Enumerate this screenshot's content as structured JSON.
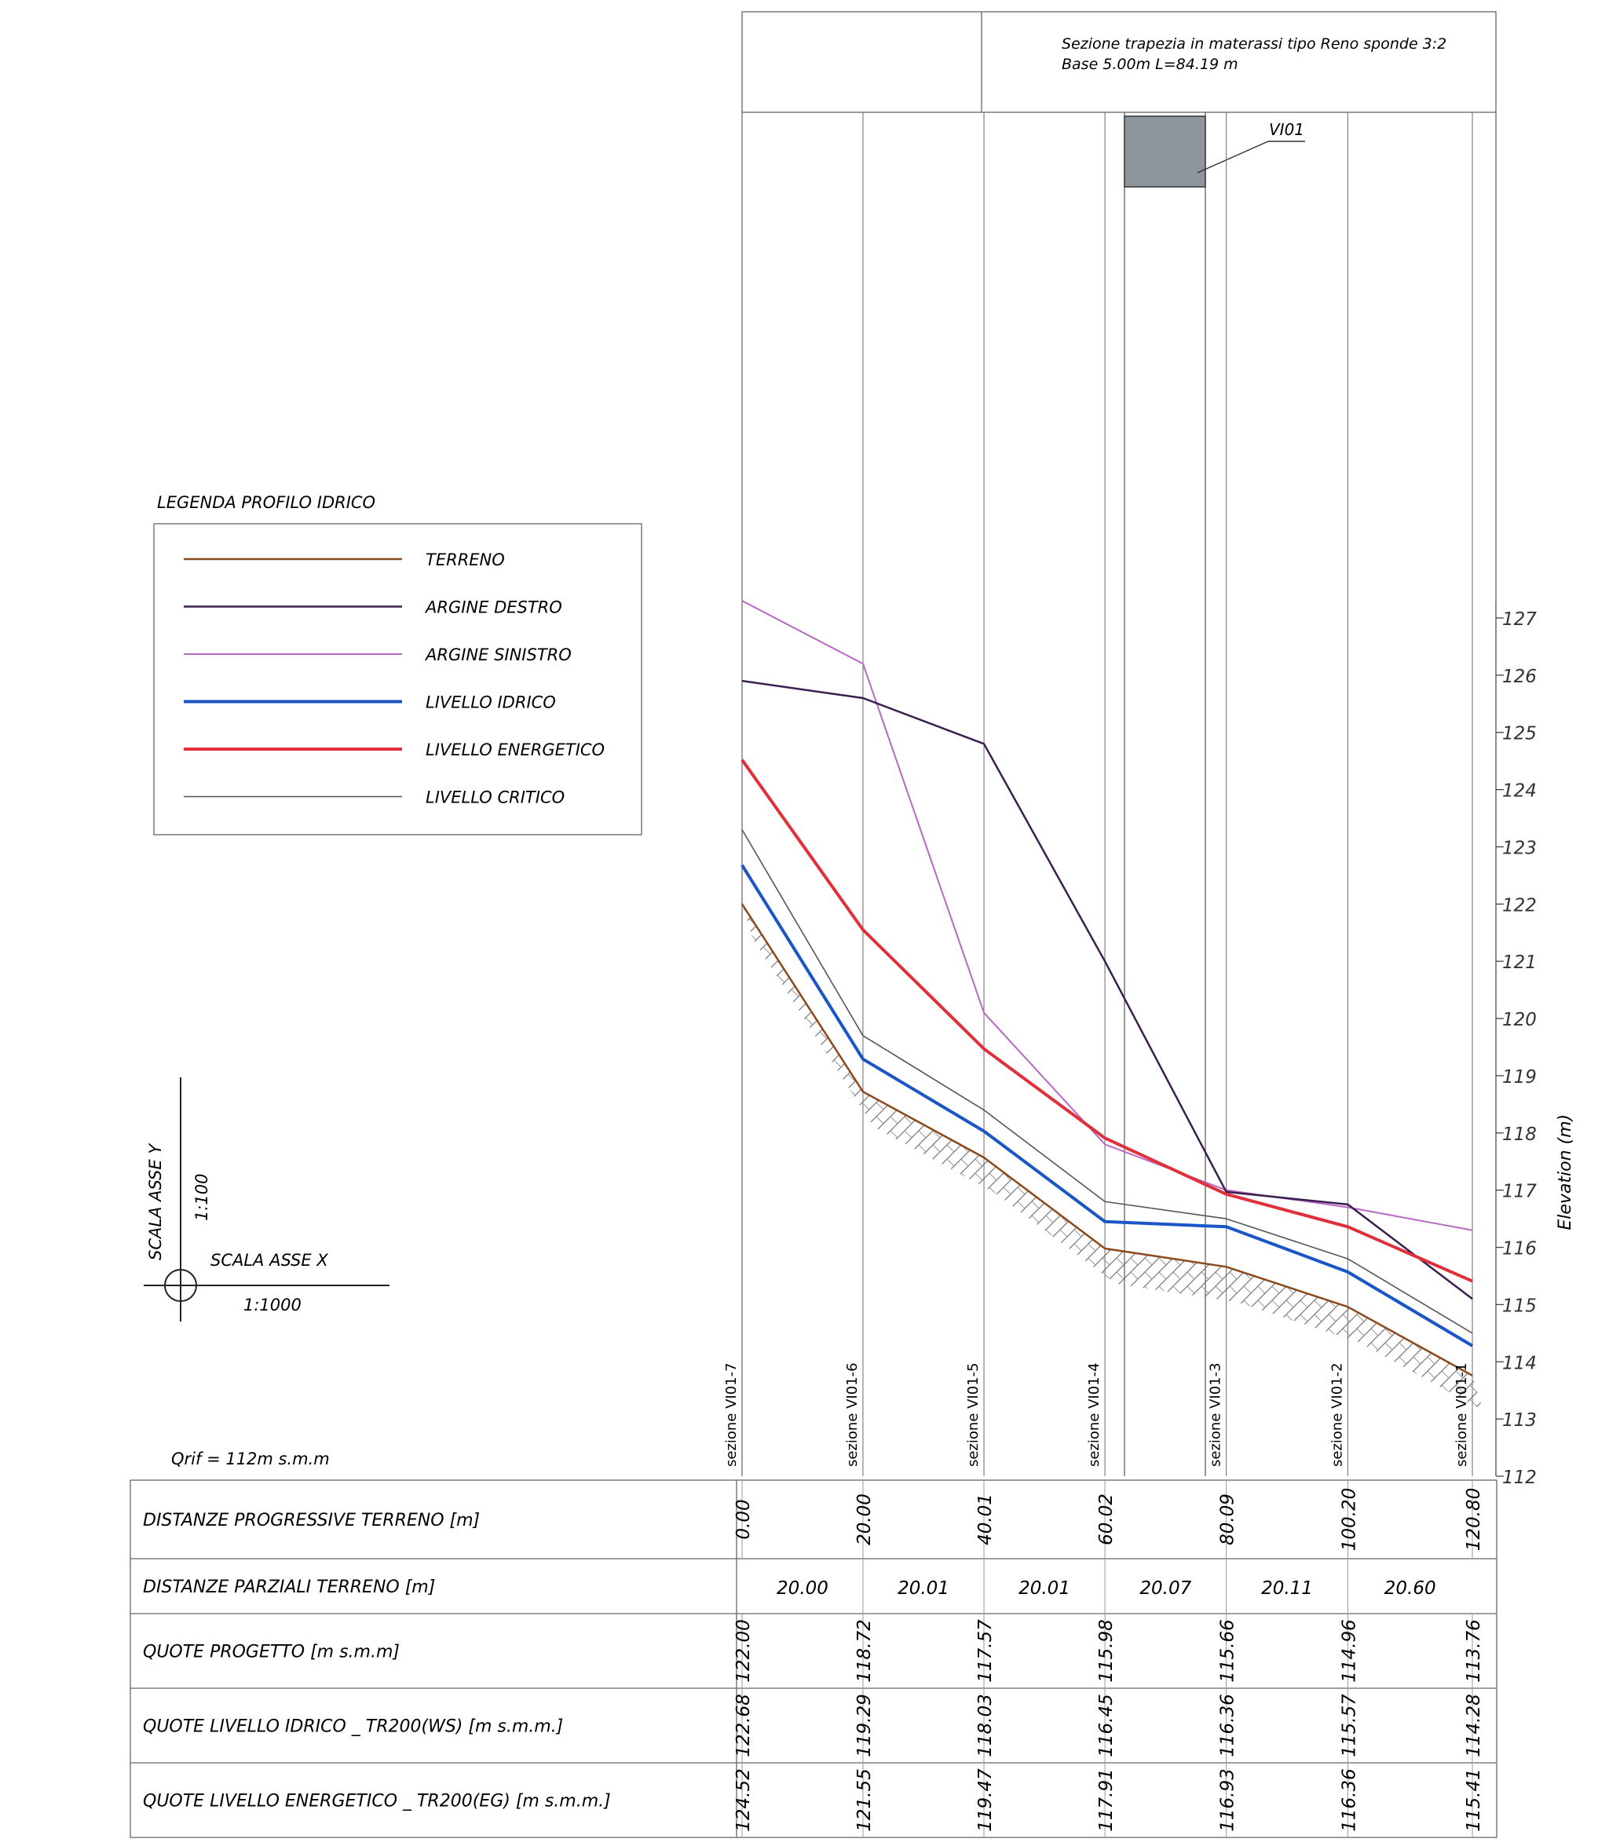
{
  "header": {
    "line1": "Sezione trapezia in materassi tipo Reno sponde 3:2",
    "line2": "Base 5.00m L=84.19 m",
    "structure_label": "VI01"
  },
  "legend": {
    "title": "LEGENDA PROFILO IDRICO",
    "items": [
      {
        "label": "TERRENO",
        "color": "#8b4a1c",
        "width": 2.5
      },
      {
        "label": "ARGINE DESTRO",
        "color": "#3b1f4f",
        "width": 2.5
      },
      {
        "label": "ARGINE SINISTRO",
        "color": "#b768c4",
        "width": 2
      },
      {
        "label": "LIVELLO IDRICO",
        "color": "#1a56c6",
        "width": 4
      },
      {
        "label": "LIVELLO ENERGETICO",
        "color": "#e0303a",
        "width": 4
      },
      {
        "label": "LIVELLO CRITICO",
        "color": "#555555",
        "width": 1.6
      }
    ]
  },
  "scale": {
    "y_label": "SCALA ASSE Y",
    "y_value": "1:100",
    "x_label": "SCALA ASSE X",
    "x_value": "1:1000"
  },
  "qrif": "Qrif  =  112m  s.m.m",
  "chart_data": {
    "type": "line",
    "ylabel": "Elevation (m)",
    "ylim": [
      112,
      127
    ],
    "yticks": [
      127,
      126,
      125,
      124,
      123,
      122,
      121,
      120,
      119,
      118,
      117,
      116,
      115,
      114,
      113,
      112
    ],
    "xlim": [
      0,
      120.8
    ],
    "x": [
      0.0,
      20.0,
      40.01,
      60.02,
      80.09,
      100.2,
      120.8
    ],
    "sections": [
      "sezione VI01-7",
      "sezione VI01-6",
      "sezione VI01-5",
      "sezione VI01-4",
      "sezione VI01-3",
      "sezione VI01-2",
      "sezione VI01-1"
    ],
    "series": [
      {
        "name": "TERRENO",
        "key": "terreno",
        "color": "#8b4a1c",
        "width": 2.5,
        "values": [
          122.0,
          118.72,
          117.57,
          115.98,
          115.66,
          114.96,
          113.76
        ]
      },
      {
        "name": "ARGINE DESTRO",
        "key": "destro",
        "color": "#3b1f4f",
        "width": 2.5,
        "values": [
          125.9,
          125.6,
          124.8,
          121.0,
          116.97,
          116.75,
          115.1
        ]
      },
      {
        "name": "ARGINE SINISTRO",
        "key": "sinistro",
        "color": "#b768c4",
        "width": 2,
        "values": [
          127.3,
          126.2,
          120.1,
          117.8,
          117.0,
          116.7,
          116.3
        ]
      },
      {
        "name": "LIVELLO IDRICO",
        "key": "idrico",
        "color": "#1a56c6",
        "width": 4,
        "values": [
          122.68,
          119.29,
          118.03,
          116.45,
          116.36,
          115.57,
          114.28
        ]
      },
      {
        "name": "LIVELLO ENERGETICO",
        "key": "energetico",
        "color": "#e0303a",
        "width": 4,
        "values": [
          124.52,
          121.55,
          119.47,
          117.91,
          116.93,
          116.36,
          115.41
        ]
      },
      {
        "name": "LIVELLO CRITICO",
        "key": "critico",
        "color": "#555555",
        "width": 1.6,
        "values": [
          123.3,
          119.7,
          118.4,
          116.8,
          116.5,
          115.8,
          114.5
        ]
      }
    ]
  },
  "table": {
    "rows": [
      {
        "label": "DISTANZE PROGRESSIVE TERRENO [m]",
        "values": [
          "0.00",
          "20.00",
          "40.01",
          "60.02",
          "80.09",
          "100.20",
          "120.80"
        ]
      },
      {
        "label": "DISTANZE PARZIALI TERRENO [m]",
        "values": [
          "20.00",
          "20.01",
          "20.01",
          "20.07",
          "20.11",
          "20.60"
        ]
      },
      {
        "label": "QUOTE   PROGETTO [m s.m.m]",
        "values": [
          "122.00",
          "118.72",
          "117.57",
          "115.98",
          "115.66",
          "114.96",
          "113.76"
        ]
      },
      {
        "label": "QUOTE   LIVELLO IDRICO _ TR200(WS) [m s.m.m.]",
        "values": [
          "122.68",
          "119.29",
          "118.03",
          "116.45",
          "116.36",
          "115.57",
          "114.28"
        ]
      },
      {
        "label": "QUOTE   LIVELLO ENERGETICO _ TR200(EG) [m s.m.m.]",
        "values": [
          "124.52",
          "121.55",
          "119.47",
          "117.91",
          "116.93",
          "116.36",
          "115.41"
        ]
      }
    ]
  }
}
